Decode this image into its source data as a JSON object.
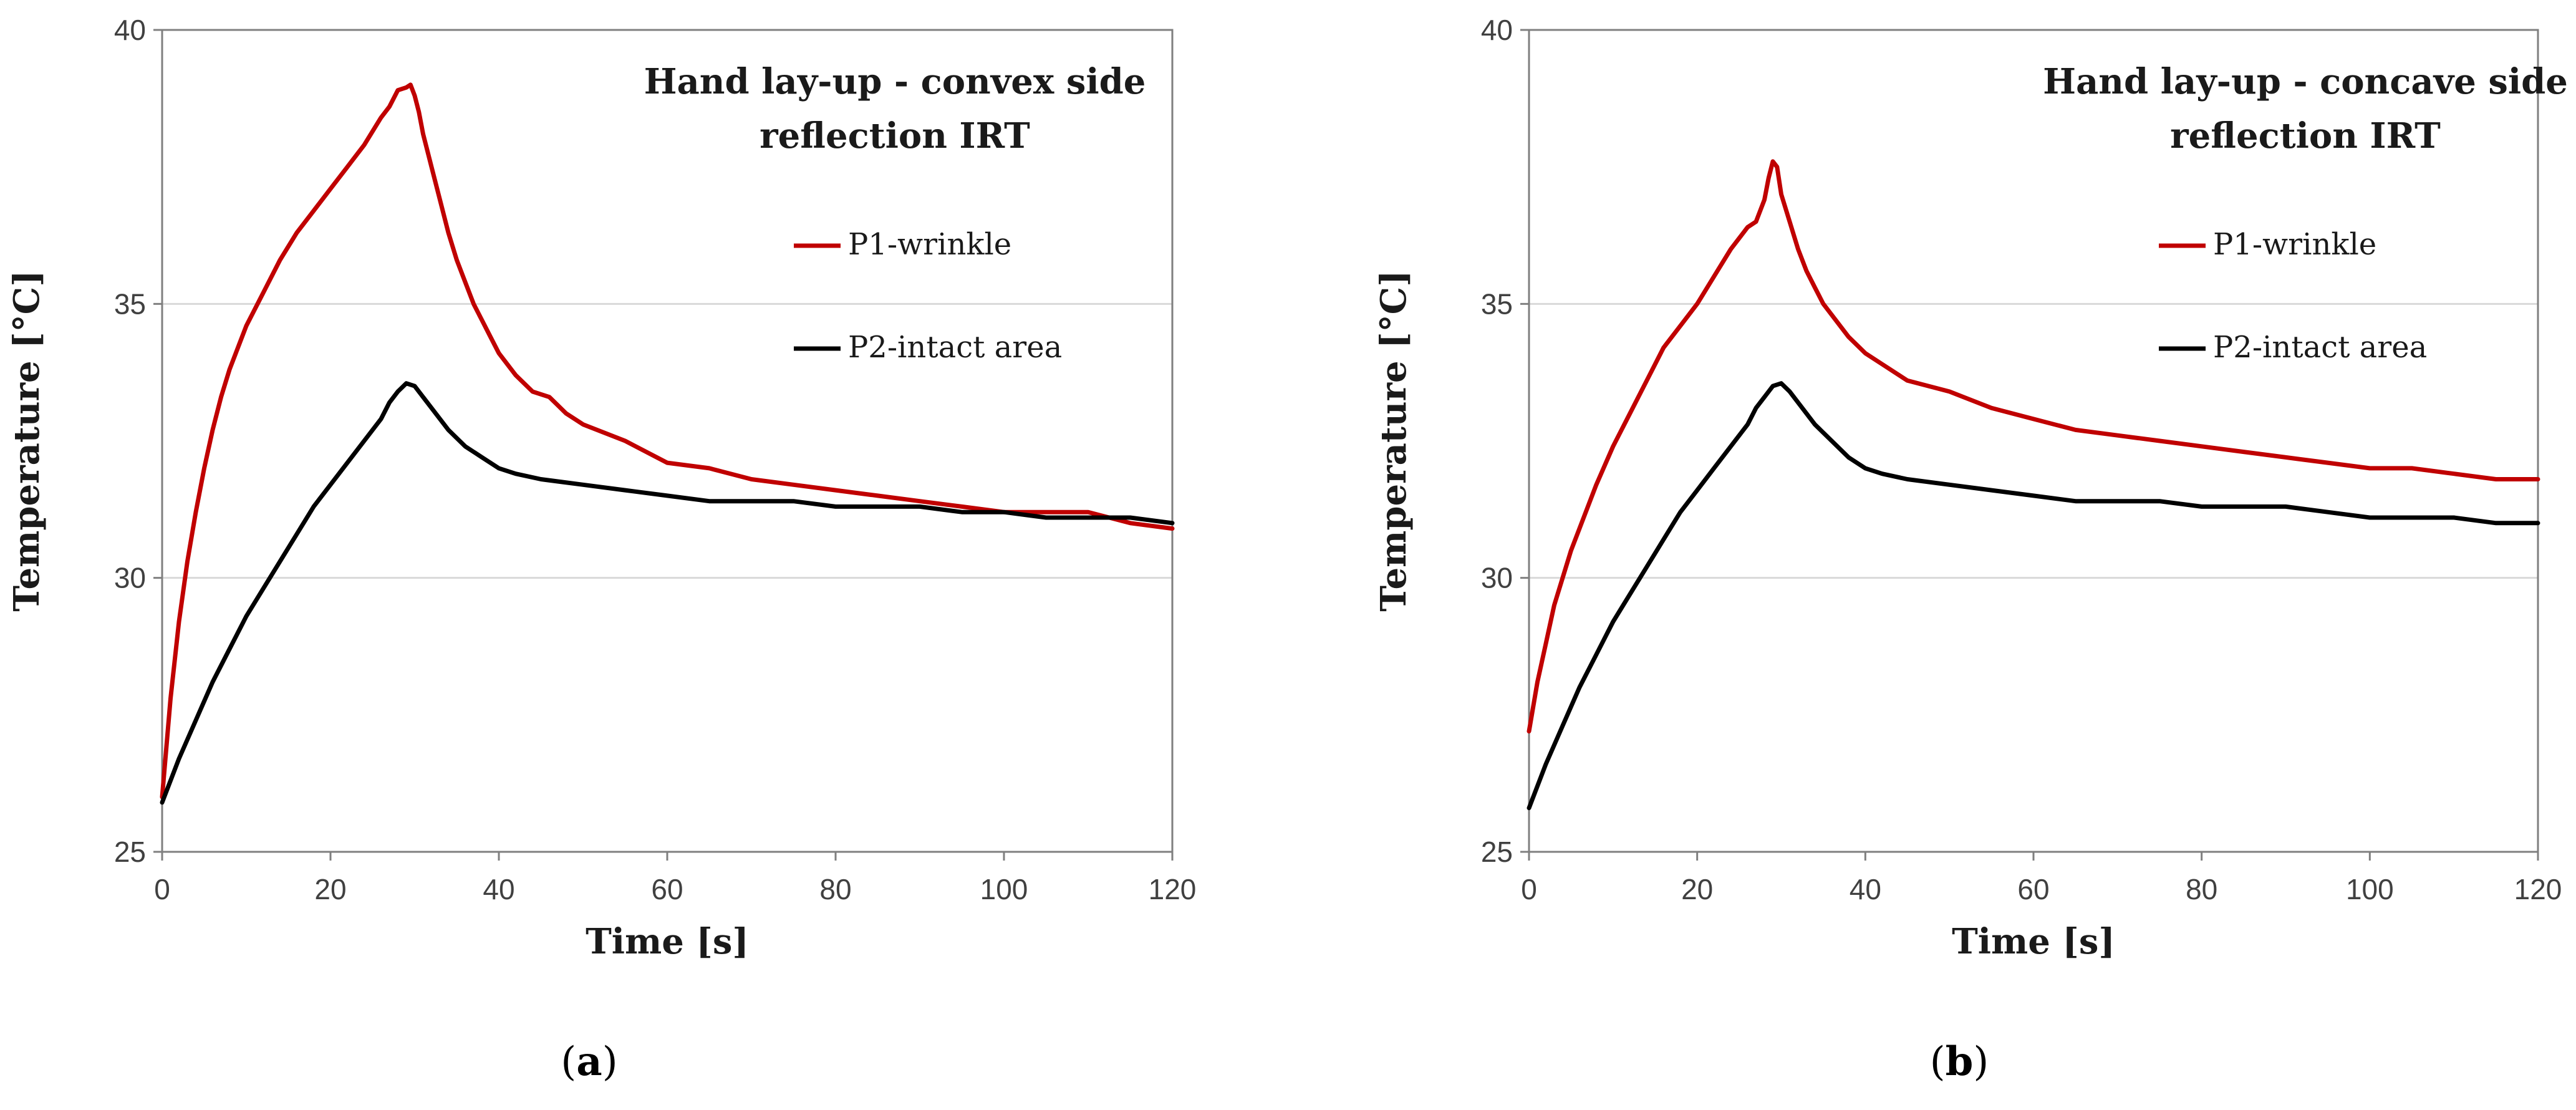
{
  "chart_data": [
    {
      "type": "line",
      "title_lines": [
        "Hand lay-up - convex side",
        "reflection IRT"
      ],
      "xlabel": "Time [s]",
      "ylabel": "Temperature [°C]",
      "xlim": [
        0,
        120
      ],
      "ylim": [
        25,
        40
      ],
      "xticks": [
        0,
        20,
        40,
        60,
        80,
        100,
        120
      ],
      "yticks": [
        25,
        30,
        35,
        40
      ],
      "grid": "horizontal",
      "legend_position": "right",
      "caption_letter": "a",
      "caption": {
        "open": "(",
        "letter": "a",
        "close": ")"
      },
      "series": [
        {
          "name": "P1-wrinkle",
          "color": "#c00000",
          "x": [
            0,
            1,
            2,
            3,
            4,
            5,
            6,
            7,
            8,
            9,
            10,
            12,
            14,
            16,
            18,
            20,
            22,
            24,
            26,
            27,
            28,
            29,
            29.5,
            30,
            30.5,
            31,
            32,
            33,
            34,
            35,
            36,
            37,
            38,
            39,
            40,
            42,
            44,
            46,
            48,
            50,
            55,
            60,
            65,
            70,
            75,
            80,
            85,
            90,
            95,
            100,
            105,
            110,
            115,
            120
          ],
          "y": [
            26.0,
            27.8,
            29.2,
            30.3,
            31.2,
            32.0,
            32.7,
            33.3,
            33.8,
            34.2,
            34.6,
            35.2,
            35.8,
            36.3,
            36.7,
            37.1,
            37.5,
            37.9,
            38.4,
            38.6,
            38.9,
            38.95,
            39.0,
            38.8,
            38.5,
            38.1,
            37.5,
            36.9,
            36.3,
            35.8,
            35.4,
            35.0,
            34.7,
            34.4,
            34.1,
            33.7,
            33.4,
            33.3,
            33.0,
            32.8,
            32.5,
            32.1,
            32.0,
            31.8,
            31.7,
            31.6,
            31.5,
            31.4,
            31.3,
            31.2,
            31.2,
            31.2,
            31.0,
            30.9
          ]
        },
        {
          "name": "P2-intact area",
          "color": "#000000",
          "x": [
            0,
            2,
            4,
            6,
            8,
            10,
            12,
            14,
            16,
            18,
            20,
            22,
            24,
            26,
            27,
            28,
            29,
            30,
            31,
            32,
            34,
            36,
            38,
            40,
            42,
            45,
            50,
            55,
            60,
            65,
            70,
            75,
            80,
            85,
            90,
            95,
            100,
            105,
            110,
            115,
            120
          ],
          "y": [
            25.9,
            26.7,
            27.4,
            28.1,
            28.7,
            29.3,
            29.8,
            30.3,
            30.8,
            31.3,
            31.7,
            32.1,
            32.5,
            32.9,
            33.2,
            33.4,
            33.55,
            33.5,
            33.3,
            33.1,
            32.7,
            32.4,
            32.2,
            32.0,
            31.9,
            31.8,
            31.7,
            31.6,
            31.5,
            31.4,
            31.4,
            31.4,
            31.3,
            31.3,
            31.3,
            31.2,
            31.2,
            31.1,
            31.1,
            31.1,
            31.0
          ]
        }
      ]
    },
    {
      "type": "line",
      "title_lines": [
        "Hand lay-up - concave side",
        "reflection IRT"
      ],
      "xlabel": "Time [s]",
      "ylabel": "Temperature [°C]",
      "xlim": [
        0,
        120
      ],
      "ylim": [
        25,
        40
      ],
      "xticks": [
        0,
        20,
        40,
        60,
        80,
        100,
        120
      ],
      "yticks": [
        25,
        30,
        35,
        40
      ],
      "grid": "horizontal",
      "legend_position": "right",
      "caption_letter": "b",
      "caption": {
        "open": "(",
        "letter": "b",
        "close": ")"
      },
      "series": [
        {
          "name": "P1-wrinkle",
          "color": "#c00000",
          "x": [
            0,
            1,
            2,
            3,
            4,
            5,
            6,
            8,
            10,
            12,
            14,
            16,
            18,
            20,
            22,
            24,
            26,
            27,
            28,
            28.5,
            29,
            29.5,
            30,
            31,
            32,
            33,
            34,
            35,
            36,
            38,
            40,
            42,
            45,
            50,
            55,
            60,
            65,
            70,
            75,
            80,
            85,
            90,
            95,
            100,
            105,
            110,
            115,
            120
          ],
          "y": [
            27.2,
            28.1,
            28.8,
            29.5,
            30.0,
            30.5,
            30.9,
            31.7,
            32.4,
            33.0,
            33.6,
            34.2,
            34.6,
            35.0,
            35.5,
            36.0,
            36.4,
            36.5,
            36.9,
            37.3,
            37.6,
            37.5,
            37.0,
            36.5,
            36.0,
            35.6,
            35.3,
            35.0,
            34.8,
            34.4,
            34.1,
            33.9,
            33.6,
            33.4,
            33.1,
            32.9,
            32.7,
            32.6,
            32.5,
            32.4,
            32.3,
            32.2,
            32.1,
            32.0,
            32.0,
            31.9,
            31.8,
            31.8
          ]
        },
        {
          "name": "P2-intact area",
          "color": "#000000",
          "x": [
            0,
            2,
            4,
            6,
            8,
            10,
            12,
            14,
            16,
            18,
            20,
            22,
            24,
            26,
            27,
            28,
            29,
            30,
            31,
            32,
            34,
            36,
            38,
            40,
            42,
            45,
            50,
            55,
            60,
            65,
            70,
            75,
            80,
            85,
            90,
            95,
            100,
            105,
            110,
            115,
            120
          ],
          "y": [
            25.8,
            26.6,
            27.3,
            28.0,
            28.6,
            29.2,
            29.7,
            30.2,
            30.7,
            31.2,
            31.6,
            32.0,
            32.4,
            32.8,
            33.1,
            33.3,
            33.5,
            33.55,
            33.4,
            33.2,
            32.8,
            32.5,
            32.2,
            32.0,
            31.9,
            31.8,
            31.7,
            31.6,
            31.5,
            31.4,
            31.4,
            31.4,
            31.3,
            31.3,
            31.3,
            31.2,
            31.1,
            31.1,
            31.1,
            31.0,
            31.0
          ]
        }
      ]
    }
  ]
}
